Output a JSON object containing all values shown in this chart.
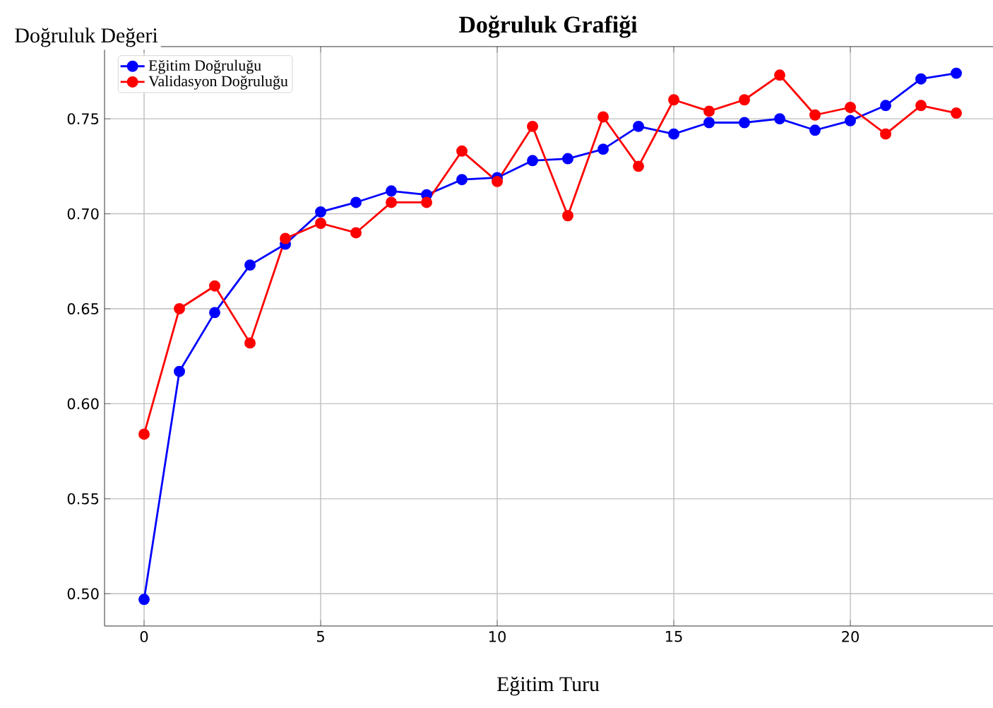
{
  "chart_data": {
    "type": "line",
    "title": "Doğruluk Grafiği",
    "xlabel": "Eğitim Turu",
    "ylabel": "Doğruluk Değeri",
    "x": [
      0,
      1,
      2,
      3,
      4,
      5,
      6,
      7,
      8,
      9,
      10,
      11,
      12,
      13,
      14,
      15,
      16,
      17,
      18,
      19,
      20,
      21,
      22,
      23
    ],
    "series": [
      {
        "name": "Eğitim Doğruluğu",
        "color": "#0000ff",
        "values": [
          0.497,
          0.617,
          0.648,
          0.673,
          0.684,
          0.701,
          0.706,
          0.712,
          0.71,
          0.718,
          0.719,
          0.728,
          0.729,
          0.734,
          0.746,
          0.742,
          0.748,
          0.748,
          0.75,
          0.744,
          0.749,
          0.757,
          0.771,
          0.774
        ]
      },
      {
        "name": "Validasyon Doğruluğu",
        "color": "#ff0000",
        "values": [
          0.584,
          0.65,
          0.662,
          0.632,
          0.687,
          0.695,
          0.69,
          0.706,
          0.706,
          0.733,
          0.717,
          0.746,
          0.699,
          0.751,
          0.725,
          0.76,
          0.754,
          0.76,
          0.773,
          0.752,
          0.756,
          0.742,
          0.757,
          0.753
        ]
      }
    ],
    "xlim": [
      -1.12,
      24.04
    ],
    "ylim": [
      0.483,
      0.788
    ],
    "xticks": [
      0,
      5,
      10,
      15,
      20
    ],
    "yticks": [
      {
        "value": 0.5,
        "label": "0.50"
      },
      {
        "value": 0.55,
        "label": "0.55"
      },
      {
        "value": 0.6,
        "label": "0.60"
      },
      {
        "value": 0.65,
        "label": "0.65"
      },
      {
        "value": 0.7,
        "label": "0.70"
      },
      {
        "value": 0.75,
        "label": "0.75"
      }
    ],
    "grid": true,
    "legend": "top left",
    "marker": "circle",
    "line_style": "solid"
  }
}
